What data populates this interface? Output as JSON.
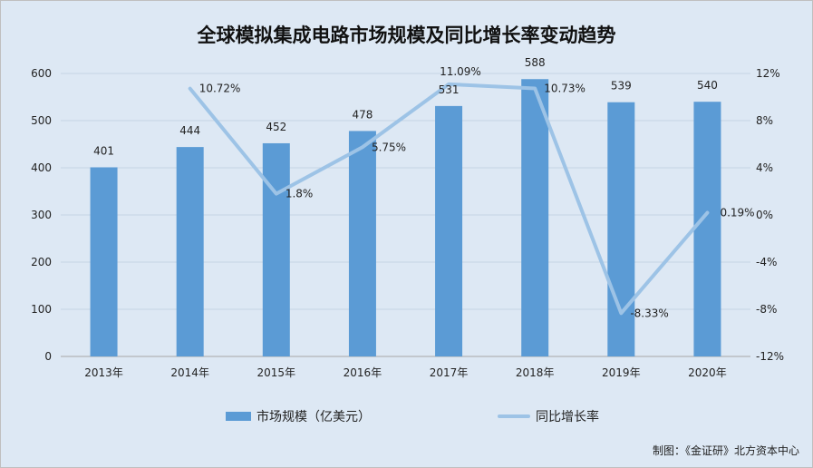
{
  "chart_data": {
    "type": "bar",
    "title": "全球模拟集成电路市场规模及同比增长率变动趋势",
    "categories": [
      "2013年",
      "2014年",
      "2015年",
      "2016年",
      "2017年",
      "2018年",
      "2019年",
      "2020年"
    ],
    "series": [
      {
        "name": "市场规模（亿美元）",
        "type": "bar",
        "axis": "left",
        "values": [
          401,
          444,
          452,
          478,
          531,
          588,
          539,
          540
        ],
        "labels": [
          "401",
          "444",
          "452",
          "478",
          "531",
          "588",
          "539",
          "540"
        ],
        "color": "#5b9bd5"
      },
      {
        "name": "同比增长率",
        "type": "line",
        "axis": "right",
        "values": [
          null,
          10.72,
          1.8,
          5.75,
          11.09,
          10.73,
          -8.33,
          0.19
        ],
        "labels": [
          "",
          "10.72%",
          "1.8%",
          "5.75%",
          "11.09%",
          "10.73%",
          "-8.33%",
          "0.19%"
        ],
        "color": "#9dc3e6"
      }
    ],
    "y_left": {
      "min": 0,
      "max": 600,
      "ticks": [
        0,
        100,
        200,
        300,
        400,
        500,
        600
      ],
      "tick_labels": [
        "0",
        "100",
        "200",
        "300",
        "400",
        "500",
        "600"
      ]
    },
    "y_right": {
      "min": -12,
      "max": 12,
      "ticks": [
        -12,
        -8,
        -4,
        0,
        4,
        8,
        12
      ],
      "tick_labels": [
        "-12%",
        "-8%",
        "-4%",
        "0%",
        "4%",
        "8%",
        "12%"
      ]
    },
    "grid": true,
    "legend_position": "bottom",
    "background_color": "#dde8f4"
  },
  "source_note": "制图：《金证研》北方资本中心"
}
